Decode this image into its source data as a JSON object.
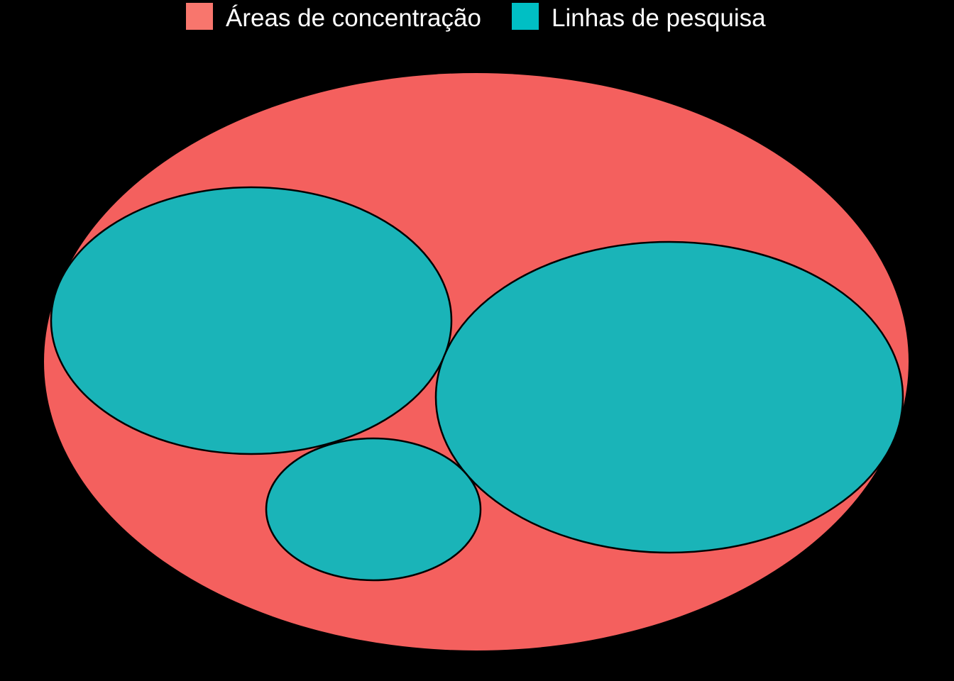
{
  "chart_data": {
    "type": "circle-packing",
    "legend": {
      "placement": "top",
      "items": [
        {
          "label": "Áreas de concentração",
          "color": "#F8766D"
        },
        {
          "label": "Linhas de pesquisa",
          "color": "#00BFC4"
        }
      ]
    },
    "nodes": [
      {
        "id": "area",
        "group": "Áreas de concentração",
        "parent": null
      },
      {
        "id": "linha-1",
        "group": "Linhas de pesquisa",
        "parent": "area"
      },
      {
        "id": "linha-2",
        "group": "Linhas de pesquisa",
        "parent": "area"
      },
      {
        "id": "linha-3",
        "group": "Linhas de pesquisa",
        "parent": "area"
      }
    ]
  },
  "colors": {
    "background": "#000000",
    "area_fill": "#F4605E",
    "linha_fill": "#1AB4B8",
    "stroke": "#000000"
  }
}
